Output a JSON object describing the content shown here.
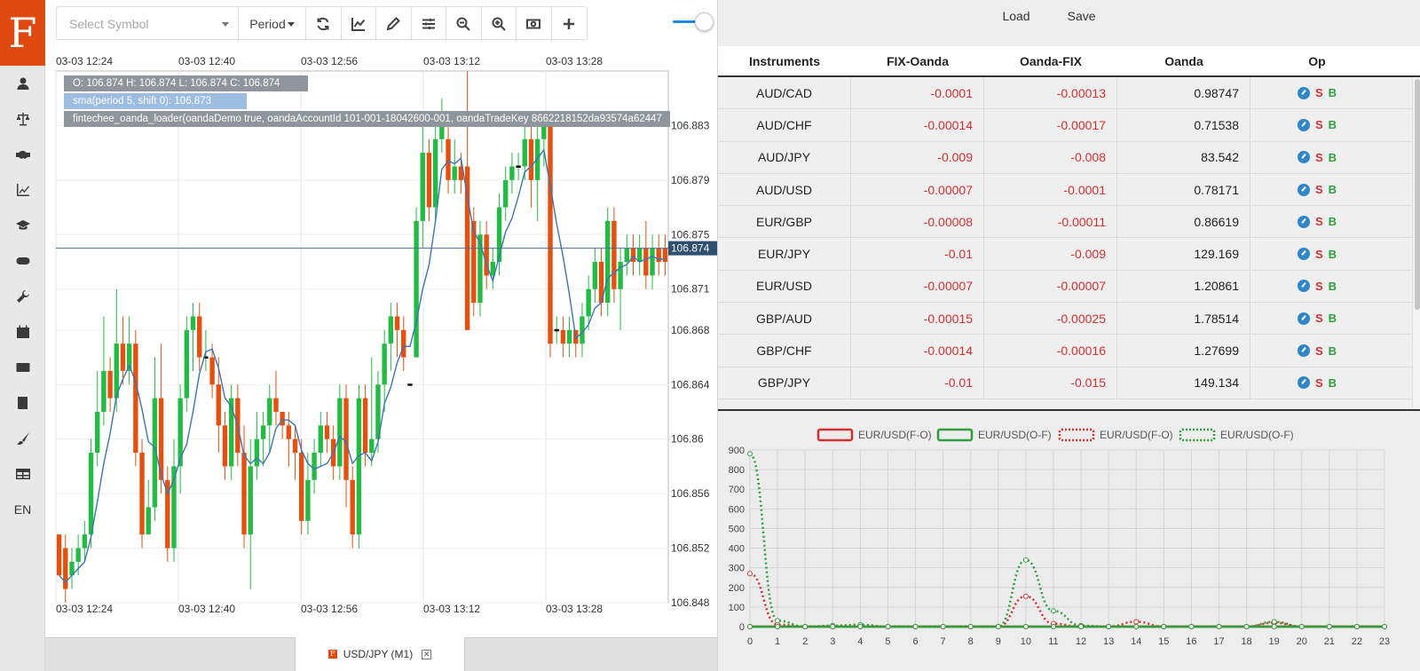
{
  "app": {
    "logo_letter": "F",
    "language": "EN"
  },
  "sidebar": {
    "items": [
      {
        "icon": "user-icon"
      },
      {
        "icon": "balance-scale-icon"
      },
      {
        "icon": "handshake-icon"
      },
      {
        "icon": "line-chart-icon"
      },
      {
        "icon": "graduation-cap-icon"
      },
      {
        "icon": "gamepad-icon"
      },
      {
        "icon": "wrench-icon"
      },
      {
        "icon": "calendar-icon"
      },
      {
        "icon": "newspaper-icon"
      },
      {
        "icon": "book-icon"
      },
      {
        "icon": "paint-brush-icon"
      },
      {
        "icon": "table-icon"
      }
    ]
  },
  "toolbar": {
    "symbol_placeholder": "Select Symbol",
    "period_label": "Period",
    "buttons": [
      "refresh-icon",
      "chart-type-icon",
      "pencil-icon",
      "settings-sliders-icon",
      "zoom-out-icon",
      "zoom-in-icon",
      "screenshot-icon",
      "plus-icon"
    ]
  },
  "main_chart": {
    "info_ohlc": "O: 106.874 H: 106.874 L: 106.874 C: 106.874",
    "info_sma": "sma(period 5, shift 0): 106.873",
    "info_loader": "fintechee_oanda_loader(oandaDemo true, oandaAccountId 101-001-18042600-001, oandaTradeKey 8662218152da93574a62447",
    "time_labels": [
      "03-03 12:24",
      "03-03 12:40",
      "03-03 12:56",
      "03-03 13:12",
      "03-03 13:28"
    ],
    "price_labels": [
      "106.883",
      "106.879",
      "106.875",
      "106.871",
      "106.868",
      "106.864",
      "106.86",
      "106.856",
      "106.852",
      "106.848"
    ],
    "current_price": "106.874",
    "colors": {
      "up": "#22bb44",
      "down": "#e5500f",
      "sma": "#3d74b3"
    }
  },
  "bottom_tab": {
    "label": "USD/JPY (M1)"
  },
  "right_panel": {
    "load_label": "Load",
    "save_label": "Save",
    "columns": [
      "Instruments",
      "FIX-Oanda",
      "Oanda-FIX",
      "Oanda",
      "Op"
    ],
    "rows": [
      {
        "inst": "AUD/CAD",
        "fo": "-0.0001",
        "of": "-0.00013",
        "oanda": "0.98747"
      },
      {
        "inst": "AUD/CHF",
        "fo": "-0.00014",
        "of": "-0.00017",
        "oanda": "0.71538"
      },
      {
        "inst": "AUD/JPY",
        "fo": "-0.009",
        "of": "-0.008",
        "oanda": "83.542"
      },
      {
        "inst": "AUD/USD",
        "fo": "-0.00007",
        "of": "-0.0001",
        "oanda": "0.78171"
      },
      {
        "inst": "EUR/GBP",
        "fo": "-0.00008",
        "of": "-0.00011",
        "oanda": "0.86619"
      },
      {
        "inst": "EUR/JPY",
        "fo": "-0.01",
        "of": "-0.009",
        "oanda": "129.169"
      },
      {
        "inst": "EUR/USD",
        "fo": "-0.00007",
        "of": "-0.00007",
        "oanda": "1.20861"
      },
      {
        "inst": "GBP/AUD",
        "fo": "-0.00015",
        "of": "-0.00025",
        "oanda": "1.78514"
      },
      {
        "inst": "GBP/CHF",
        "fo": "-0.00014",
        "of": "-0.00016",
        "oanda": "1.27699"
      },
      {
        "inst": "GBP/JPY",
        "fo": "-0.01",
        "of": "-0.015",
        "oanda": "149.134"
      }
    ],
    "op_sell": "S",
    "op_buy": "B"
  },
  "chart_data": {
    "type": "line",
    "x": [
      0,
      1,
      2,
      3,
      4,
      5,
      6,
      7,
      8,
      9,
      10,
      11,
      12,
      13,
      14,
      15,
      16,
      17,
      18,
      19,
      20,
      21,
      22,
      23
    ],
    "ylim": [
      0,
      900
    ],
    "yticks": [
      0,
      100,
      200,
      300,
      400,
      500,
      600,
      700,
      800,
      900
    ],
    "legend_position": "top-center",
    "series": [
      {
        "name": "EUR/USD(F-O)",
        "style": "solid",
        "color": "#d32f2f",
        "values": [
          0,
          0,
          0,
          0,
          0,
          0,
          0,
          0,
          0,
          0,
          0,
          0,
          0,
          0,
          0,
          0,
          0,
          0,
          0,
          0,
          0,
          0,
          0,
          0
        ]
      },
      {
        "name": "EUR/USD(O-F)",
        "style": "solid",
        "color": "#2e9e3b",
        "values": [
          0,
          0,
          0,
          0,
          0,
          0,
          0,
          0,
          0,
          0,
          0,
          0,
          0,
          0,
          0,
          0,
          0,
          0,
          0,
          0,
          0,
          0,
          0,
          0
        ]
      },
      {
        "name": "EUR/USD(F-O)",
        "style": "dotted",
        "color": "#d32f2f",
        "values": [
          270,
          10,
          0,
          0,
          0,
          0,
          0,
          0,
          0,
          0,
          155,
          15,
          0,
          0,
          25,
          0,
          0,
          0,
          0,
          20,
          0,
          0,
          0,
          0
        ]
      },
      {
        "name": "EUR/USD(O-F)",
        "style": "dotted",
        "color": "#2e9e3b",
        "values": [
          880,
          30,
          0,
          5,
          10,
          0,
          0,
          0,
          0,
          0,
          340,
          80,
          5,
          0,
          0,
          0,
          0,
          0,
          0,
          25,
          0,
          0,
          0,
          0
        ]
      }
    ]
  }
}
